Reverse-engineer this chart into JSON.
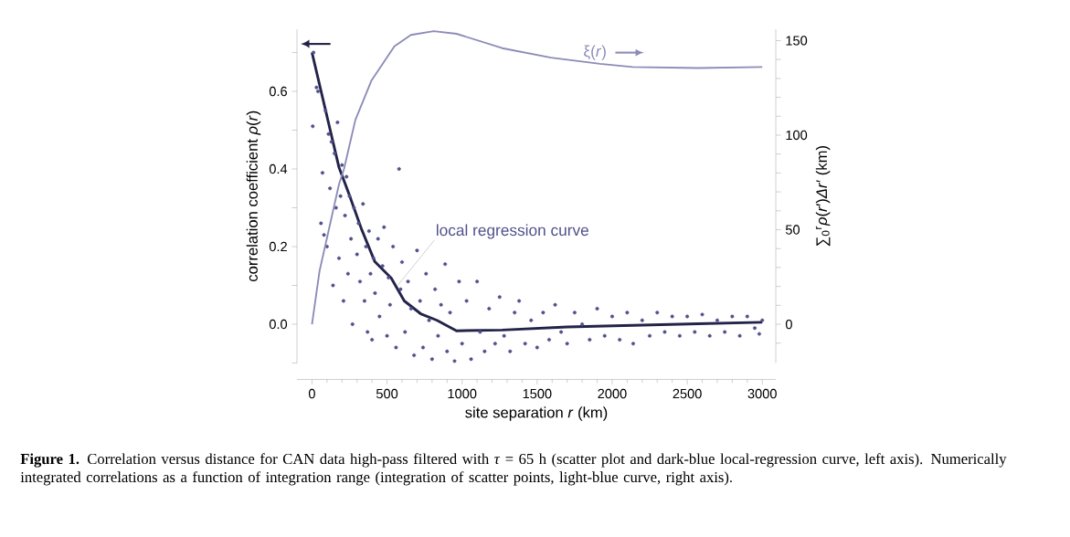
{
  "chart_data": {
    "type": "scatter",
    "xlabel": "site separation *r* (km)",
    "ylabel": "correlation coefficient *ρ*(*r*)",
    "y2label": "∑$_{0}$$^{r}$*ρ*(*r*′)*Δr*′ (km)",
    "xlim": [
      -100,
      3090
    ],
    "ylim": [
      -0.1,
      0.76
    ],
    "y2lim": [
      -20.5,
      156
    ],
    "xticks": [
      0,
      500,
      1000,
      1500,
      2000,
      2500,
      3000
    ],
    "yticks": [
      {
        "value": -0.1,
        "label": null
      },
      {
        "value": 0,
        "label": "0.0"
      },
      {
        "value": 0.1,
        "label": null
      },
      0.2,
      {
        "value": 0.3,
        "label": null
      },
      0.4,
      {
        "value": 0.5,
        "label": null
      },
      0.6,
      {
        "value": 0.7,
        "label": null
      }
    ],
    "y2ticks": [
      {
        "value": -10,
        "label": null
      },
      0,
      {
        "value": 10,
        "label": null
      },
      {
        "value": 20,
        "label": null
      },
      {
        "value": 30,
        "label": null
      },
      {
        "value": 40,
        "label": null
      },
      50,
      {
        "value": 60,
        "label": null
      },
      {
        "value": 70,
        "label": null
      },
      {
        "value": 80,
        "label": null
      },
      {
        "value": 90,
        "label": null
      },
      100,
      {
        "value": 110,
        "label": null
      },
      {
        "value": 120,
        "label": null
      },
      {
        "value": 130,
        "label": null
      },
      {
        "value": 140,
        "label": null
      },
      150
    ],
    "grid": false,
    "marker": "circle",
    "series": [
      {
        "color": "#50508c",
        "x": [
          5,
          10,
          30,
          40,
          60,
          70,
          80,
          90,
          100,
          110,
          120,
          130,
          140,
          150,
          160,
          170,
          180,
          190,
          200,
          210,
          220,
          230,
          240,
          250,
          260,
          270,
          280,
          300,
          310,
          320,
          340,
          350,
          360,
          370,
          380,
          390,
          400,
          410,
          420,
          440,
          450,
          470,
          480,
          500,
          510,
          520,
          540,
          560,
          580,
          590,
          600,
          620,
          640,
          660,
          680,
          700,
          720,
          740,
          760,
          780,
          800,
          820,
          840,
          860,
          887,
          900,
          920,
          950,
          980,
          1000,
          1030,
          1060,
          1100,
          1120,
          1150,
          1180,
          1220,
          1250,
          1280,
          1320,
          1350,
          1380,
          1420,
          1460,
          1500,
          1540,
          1580,
          1620,
          1660,
          1700,
          1750,
          1800,
          1850,
          1900,
          1950,
          2000,
          2050,
          2100,
          2140,
          2200,
          2250,
          2300,
          2350,
          2400,
          2450,
          2500,
          2550,
          2600,
          2650,
          2700,
          2750,
          2800,
          2850,
          2900,
          2950,
          2980,
          3000
        ],
        "values": [
          0.51,
          0.7,
          0.61,
          0.6,
          0.26,
          0.39,
          0.23,
          0.55,
          0.2,
          0.49,
          0.35,
          0.47,
          0.1,
          0.44,
          0.3,
          0.52,
          0.17,
          0.33,
          0.41,
          0.06,
          0.28,
          0.38,
          0.13,
          0.33,
          0.22,
          0.0,
          0.3,
          0.18,
          0.26,
          0.11,
          0.31,
          0.06,
          0.2,
          -0.02,
          0.24,
          0.13,
          -0.04,
          0.17,
          0.08,
          0.22,
          0.02,
          0.15,
          0.25,
          -0.03,
          0.12,
          0.05,
          0.2,
          -0.06,
          0.4,
          0.09,
          0.16,
          -0.02,
          0.11,
          0.04,
          -0.08,
          0.19,
          0.06,
          -0.06,
          0.13,
          0.01,
          -0.09,
          0.09,
          -0.03,
          0.05,
          0.155,
          -0.07,
          0.03,
          -0.095,
          0.11,
          -0.05,
          0.06,
          -0.09,
          0.11,
          -0.02,
          -0.07,
          0.04,
          -0.05,
          0.07,
          -0.03,
          -0.07,
          0.03,
          0.06,
          -0.05,
          0.01,
          -0.06,
          0.03,
          -0.04,
          0.05,
          -0.02,
          -0.05,
          0.03,
          0.0,
          -0.04,
          0.04,
          -0.03,
          0.02,
          -0.04,
          0.03,
          -0.05,
          0.01,
          -0.03,
          0.03,
          -0.02,
          0.02,
          -0.03,
          0.02,
          -0.02,
          0.025,
          -0.03,
          0.01,
          -0.02,
          0.02,
          -0.03,
          0.02,
          -0.01,
          -0.025,
          0.01
        ]
      },
      {
        "type": "line",
        "marker": "none",
        "color": "#23234a",
        "x": [
          0,
          180,
          245,
          330,
          419,
          528,
          615,
          724,
          833,
          963,
          1267,
          1700,
          2137,
          2571,
          3000
        ],
        "values": [
          0.7,
          0.404,
          0.337,
          0.245,
          0.161,
          0.119,
          0.06,
          0.027,
          0.01,
          -0.017,
          -0.015,
          -0.007,
          -0.003,
          0.001,
          0.005
        ]
      },
      {
        "type": "line",
        "marker": "none",
        "axis": "y2",
        "name": "ξ(*r*)",
        "color": "#8c8cb8",
        "x": [
          0,
          50,
          180,
          213,
          289,
          397,
          549,
          659,
          811,
          963,
          1267,
          1593,
          1919,
          2137,
          2571,
          3000
        ],
        "values": [
          0,
          28,
          74,
          82,
          108,
          129,
          147,
          153,
          155,
          153.6,
          146,
          141,
          137.7,
          136,
          135.5,
          136
        ]
      }
    ],
    "annotations": [
      {
        "text": "local regression curve",
        "x": 571,
        "y": 0.1
      },
      "**Figure 1.** Correlation versus distance for CAN data high-pass filtered with *τ* = 65 h (scatter plot and dark-blue local-regression curve, left axis). Numerically integrated correlations as a function of integration range (integration of scatter points, light-blue curve, right axis)."
    ]
  }
}
